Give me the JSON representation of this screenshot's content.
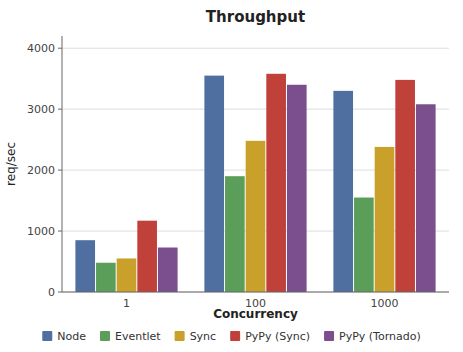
{
  "chart_data": {
    "type": "bar",
    "title": "Throughput",
    "xlabel": "Concurrency",
    "ylabel": "req/sec",
    "categories": [
      "1",
      "100",
      "1000"
    ],
    "series": [
      {
        "name": "Node",
        "color": "#4f6fa0",
        "values": [
          850,
          3550,
          3300
        ]
      },
      {
        "name": "Eventlet",
        "color": "#5a9e5a",
        "values": [
          480,
          1900,
          1550
        ]
      },
      {
        "name": "Sync",
        "color": "#c9a02a",
        "values": [
          550,
          2480,
          2380
        ]
      },
      {
        "name": "PyPy (Sync)",
        "color": "#c0413a",
        "values": [
          1170,
          3580,
          3480
        ]
      },
      {
        "name": "PyPy (Tornado)",
        "color": "#7b4f8e",
        "values": [
          730,
          3400,
          3080
        ]
      }
    ],
    "ylim": [
      0,
      4200
    ],
    "yticks": [
      0,
      1000,
      2000,
      3000,
      4000
    ],
    "grid": true,
    "legend": "bottom"
  }
}
